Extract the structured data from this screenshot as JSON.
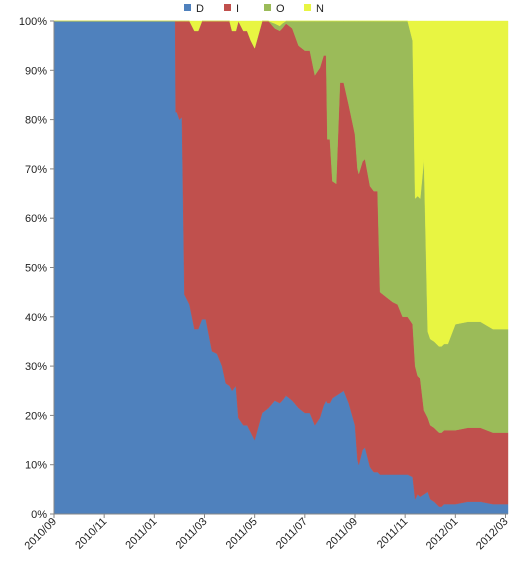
{
  "chart_data": {
    "type": "area",
    "stacked": true,
    "percent": true,
    "title": "",
    "xlabel": "",
    "ylabel": "",
    "ylim": [
      0,
      100
    ],
    "legend_position": "top-center",
    "y_ticks": [
      "0%",
      "10%",
      "20%",
      "30%",
      "40%",
      "50%",
      "60%",
      "70%",
      "80%",
      "90%",
      "100%"
    ],
    "x_tick_labels": [
      "2010/09",
      "2010/11",
      "2011/01",
      "2011/03",
      "2011/05",
      "2011/07",
      "2011/09",
      "2011/11",
      "2012/01",
      "2012/03"
    ],
    "x_tick_months": [
      0,
      2,
      4,
      6,
      8,
      10,
      12,
      14,
      16,
      18
    ],
    "x_range_months": [
      0,
      18.1
    ],
    "x_months": [
      0,
      4.83,
      4.85,
      4.9,
      5.0,
      5.1,
      5.2,
      5.4,
      5.6,
      5.75,
      5.9,
      6.05,
      6.3,
      6.5,
      6.7,
      6.85,
      7.0,
      7.1,
      7.25,
      7.35,
      7.55,
      7.7,
      7.85,
      8.0,
      8.3,
      8.55,
      8.8,
      9.0,
      9.1,
      9.25,
      9.5,
      9.75,
      10.0,
      10.2,
      10.4,
      10.6,
      10.75,
      10.85,
      10.9,
      11.0,
      11.1,
      11.25,
      11.4,
      11.55,
      11.75,
      12.0,
      12.1,
      12.15,
      12.3,
      12.4,
      12.6,
      12.75,
      12.9,
      13.0,
      13.25,
      13.5,
      13.7,
      13.9,
      14.1,
      14.3,
      14.4,
      14.5,
      14.6,
      14.75,
      14.9,
      15.0,
      15.15,
      15.25,
      15.35,
      15.45,
      15.55,
      15.65,
      15.7,
      16.0,
      16.5,
      17.0,
      17.5,
      17.8,
      18.1
    ],
    "series": [
      {
        "name": "D",
        "color": "#4f81bd",
        "values": [
          100,
          100,
          81.5,
          81.5,
          80,
          80.5,
          44.5,
          42.5,
          37.5,
          37.5,
          39.5,
          39.5,
          33,
          32.5,
          30,
          26.5,
          26,
          25,
          26,
          19.5,
          18,
          18,
          16.5,
          15,
          20.5,
          21.5,
          23,
          22.5,
          23,
          24,
          23,
          21.5,
          20.5,
          20.5,
          18,
          19.5,
          22,
          23,
          22.5,
          22.5,
          23.5,
          24,
          24.5,
          25,
          22.5,
          18,
          11,
          10,
          13,
          13.5,
          9.5,
          8.5,
          8.5,
          8,
          8,
          8,
          8,
          8,
          8,
          7.5,
          3,
          4,
          3.5,
          4,
          4.5,
          3,
          2.5,
          2,
          1.5,
          1.5,
          2,
          2,
          2,
          2,
          2.5,
          2.5,
          2,
          2,
          2
        ]
      },
      {
        "name": "I",
        "color": "#c0504d",
        "values": [
          0,
          0,
          18.5,
          18.5,
          20,
          19.5,
          55.5,
          57.5,
          60.5,
          60.5,
          60.5,
          60.5,
          67,
          67.5,
          70,
          73.5,
          74,
          73,
          72,
          80.5,
          80,
          80,
          79.5,
          79.5,
          79.5,
          78.5,
          75.5,
          75.5,
          75.5,
          75.5,
          75.5,
          73.5,
          73.5,
          73.5,
          71,
          71,
          71,
          70,
          53.5,
          53.5,
          44,
          43,
          63,
          62.5,
          60.5,
          59,
          59,
          59,
          58.5,
          58.5,
          57,
          57,
          57,
          37,
          36,
          35,
          34.5,
          32,
          32,
          31,
          27,
          24,
          24,
          17,
          15,
          15,
          15,
          15,
          15,
          15,
          15,
          15,
          15,
          15,
          15,
          15,
          14.5,
          14.5,
          14.5
        ]
      },
      {
        "name": "O",
        "color": "#9bbb59",
        "values": [
          0,
          0,
          0,
          0,
          0,
          0,
          0,
          0,
          0,
          0,
          0,
          0,
          0,
          0,
          0,
          0,
          0,
          0,
          0,
          0,
          0,
          0,
          0,
          0,
          0,
          0,
          1,
          1,
          1,
          0.5,
          1.5,
          5,
          6,
          6,
          11,
          9.5,
          7,
          7,
          24,
          24,
          32.5,
          33,
          12.5,
          12.5,
          17,
          23,
          30,
          31,
          28.5,
          28,
          33.5,
          34.5,
          34.5,
          55,
          56,
          57,
          57.5,
          60,
          60,
          57.5,
          34,
          36.5,
          36.5,
          51,
          17.5,
          17.5,
          17.5,
          17.5,
          17.5,
          17.5,
          17.5,
          17.5,
          17.5,
          21.5,
          21.5,
          21.5,
          21,
          21,
          21
        ]
      },
      {
        "name": "N",
        "color": "#e8f542",
        "values": [
          0,
          0,
          0,
          0,
          0,
          0,
          0,
          0,
          2,
          2,
          0,
          0,
          0,
          0,
          0,
          0,
          0,
          2,
          2,
          0,
          2,
          2,
          4,
          5.5,
          0,
          0,
          0.5,
          1,
          0.5,
          0,
          0,
          0,
          0,
          0,
          0,
          0,
          0,
          0,
          0,
          0,
          0,
          0,
          0,
          0,
          0,
          0,
          0,
          0,
          0,
          0,
          0,
          0,
          0,
          0,
          0,
          0,
          0,
          0,
          0,
          4,
          36,
          35.5,
          36,
          28,
          63,
          64.5,
          65,
          65.5,
          66,
          66,
          65.5,
          65.5,
          65.5,
          61.5,
          61,
          61,
          62.5,
          62.5,
          62.5
        ]
      }
    ]
  }
}
